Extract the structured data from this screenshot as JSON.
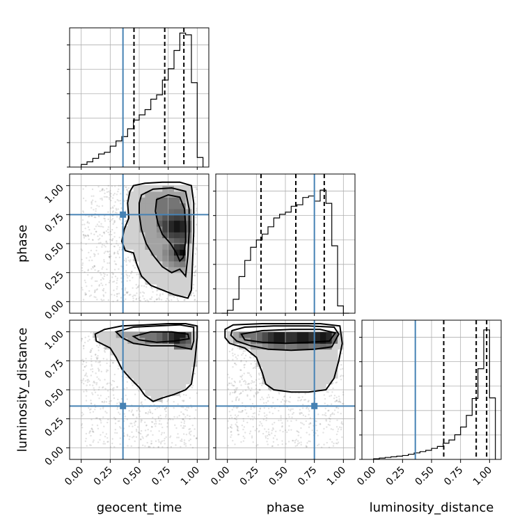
{
  "chart_data": {
    "type": "corner",
    "parameters": [
      "geocent_time",
      "phase",
      "luminosity_distance"
    ],
    "axis_range": [
      -0.1,
      1.1
    ],
    "ticks": [
      0.0,
      0.25,
      0.5,
      0.75,
      1.0
    ],
    "tick_labels": [
      "0.00",
      "0.25",
      "0.50",
      "0.75",
      "1.00"
    ],
    "truths": {
      "geocent_time": 0.36,
      "phase": 0.75,
      "luminosity_distance": 0.36
    },
    "colors": {
      "truth": "#4682b4",
      "line": "#000000",
      "grid": "#b0b0b0"
    },
    "histograms": [
      {
        "param": "geocent_time",
        "bin_edges": [
          0.0,
          0.05,
          0.1,
          0.15,
          0.2,
          0.25,
          0.3,
          0.35,
          0.4,
          0.45,
          0.5,
          0.55,
          0.6,
          0.65,
          0.7,
          0.75,
          0.8,
          0.85,
          0.9,
          0.95,
          1.0,
          1.05
        ],
        "counts": [
          3,
          6,
          10,
          15,
          17,
          24,
          30,
          35,
          44,
          54,
          60,
          66,
          78,
          83,
          100,
          113,
          134,
          154,
          152,
          97,
          11
        ],
        "ymax": 160,
        "quantiles": [
          0.455,
          0.72,
          0.885
        ]
      },
      {
        "param": "phase",
        "bin_edges": [
          -0.05,
          0.0,
          0.05,
          0.1,
          0.15,
          0.2,
          0.25,
          0.3,
          0.35,
          0.4,
          0.45,
          0.5,
          0.55,
          0.6,
          0.65,
          0.7,
          0.75,
          0.8,
          0.85,
          0.9,
          0.95,
          1.0,
          1.05
        ],
        "counts": [
          0,
          4,
          19,
          50,
          72,
          90,
          100,
          108,
          118,
          130,
          135,
          138,
          146,
          148,
          158,
          160,
          153,
          168,
          150,
          92,
          10,
          0
        ],
        "ymax": 190,
        "quantiles": [
          0.29,
          0.59,
          0.835
        ]
      },
      {
        "param": "luminosity_distance",
        "bin_edges": [
          0.0,
          0.05,
          0.1,
          0.15,
          0.2,
          0.25,
          0.3,
          0.35,
          0.4,
          0.45,
          0.5,
          0.55,
          0.6,
          0.65,
          0.7,
          0.75,
          0.8,
          0.85,
          0.9,
          0.95,
          1.0,
          1.05
        ],
        "counts": [
          1,
          2,
          3,
          4,
          5,
          6,
          8,
          10,
          12,
          14,
          17,
          20,
          25,
          30,
          38,
          50,
          68,
          94,
          140,
          200,
          95
        ],
        "ymax": 215,
        "quantiles": [
          0.605,
          0.885,
          0.975
        ]
      }
    ],
    "densities": [
      {
        "x": "geocent_time",
        "y": "phase",
        "modes": [
          [
            0.83,
            0.65
          ],
          [
            0.88,
            0.42
          ]
        ],
        "contours": [
          [
            [
              0.45,
              1.0
            ],
            [
              0.55,
              1.02
            ],
            [
              0.7,
              1.03
            ],
            [
              0.85,
              1.03
            ],
            [
              0.95,
              1.0
            ],
            [
              0.97,
              0.85
            ],
            [
              0.97,
              0.6
            ],
            [
              0.96,
              0.35
            ],
            [
              0.95,
              0.1
            ],
            [
              0.92,
              0.03
            ],
            [
              0.8,
              0.06
            ],
            [
              0.7,
              0.1
            ],
            [
              0.6,
              0.14
            ],
            [
              0.52,
              0.22
            ],
            [
              0.48,
              0.32
            ],
            [
              0.45,
              0.42
            ],
            [
              0.38,
              0.44
            ],
            [
              0.35,
              0.52
            ],
            [
              0.37,
              0.62
            ],
            [
              0.41,
              0.72
            ],
            [
              0.4,
              0.85
            ],
            [
              0.42,
              0.95
            ]
          ],
          [
            [
              0.52,
              0.92
            ],
            [
              0.62,
              0.97
            ],
            [
              0.78,
              0.98
            ],
            [
              0.9,
              0.95
            ],
            [
              0.93,
              0.8
            ],
            [
              0.93,
              0.6
            ],
            [
              0.92,
              0.4
            ],
            [
              0.9,
              0.22
            ],
            [
              0.85,
              0.28
            ],
            [
              0.78,
              0.25
            ],
            [
              0.7,
              0.3
            ],
            [
              0.62,
              0.4
            ],
            [
              0.56,
              0.5
            ],
            [
              0.52,
              0.62
            ],
            [
              0.5,
              0.75
            ],
            [
              0.5,
              0.85
            ]
          ],
          [
            [
              0.65,
              0.88
            ],
            [
              0.75,
              0.92
            ],
            [
              0.85,
              0.9
            ],
            [
              0.89,
              0.8
            ],
            [
              0.9,
              0.65
            ],
            [
              0.9,
              0.52
            ],
            [
              0.88,
              0.38
            ],
            [
              0.85,
              0.35
            ],
            [
              0.82,
              0.42
            ],
            [
              0.77,
              0.5
            ],
            [
              0.7,
              0.58
            ],
            [
              0.66,
              0.68
            ],
            [
              0.64,
              0.78
            ]
          ]
        ]
      },
      {
        "x": "geocent_time",
        "y": "luminosity_distance",
        "modes": [
          [
            0.85,
            0.95
          ]
        ],
        "contours": [
          [
            [
              0.12,
              0.98
            ],
            [
              0.2,
              1.02
            ],
            [
              0.35,
              1.05
            ],
            [
              0.55,
              1.06
            ],
            [
              0.75,
              1.07
            ],
            [
              0.9,
              1.07
            ],
            [
              1.0,
              1.05
            ],
            [
              1.0,
              0.95
            ],
            [
              0.98,
              0.75
            ],
            [
              0.95,
              0.55
            ],
            [
              0.9,
              0.5
            ],
            [
              0.8,
              0.46
            ],
            [
              0.7,
              0.43
            ],
            [
              0.62,
              0.4
            ],
            [
              0.55,
              0.45
            ],
            [
              0.5,
              0.52
            ],
            [
              0.42,
              0.6
            ],
            [
              0.35,
              0.68
            ],
            [
              0.3,
              0.78
            ],
            [
              0.25,
              0.86
            ],
            [
              0.13,
              0.92
            ]
          ],
          [
            [
              0.3,
              1.0
            ],
            [
              0.45,
              1.04
            ],
            [
              0.65,
              1.05
            ],
            [
              0.85,
              1.06
            ],
            [
              0.97,
              1.04
            ],
            [
              0.97,
              0.92
            ],
            [
              0.95,
              0.85
            ],
            [
              0.8,
              0.88
            ],
            [
              0.6,
              0.88
            ],
            [
              0.45,
              0.9
            ],
            [
              0.35,
              0.95
            ]
          ],
          [
            [
              0.45,
              0.96
            ],
            [
              0.6,
              1.0
            ],
            [
              0.78,
              1.0
            ],
            [
              0.92,
              0.98
            ],
            [
              0.93,
              0.94
            ],
            [
              0.8,
              0.92
            ],
            [
              0.65,
              0.91
            ],
            [
              0.5,
              0.93
            ]
          ]
        ]
      },
      {
        "x": "phase",
        "y": "luminosity_distance",
        "modes": [
          [
            0.45,
            0.95
          ],
          [
            0.65,
            0.95
          ],
          [
            0.82,
            0.95
          ]
        ],
        "contours": [
          [
            [
              -0.02,
              1.02
            ],
            [
              0.05,
              1.06
            ],
            [
              0.3,
              1.07
            ],
            [
              0.55,
              1.07
            ],
            [
              0.8,
              1.07
            ],
            [
              0.97,
              1.05
            ],
            [
              0.99,
              0.9
            ],
            [
              0.96,
              0.75
            ],
            [
              0.92,
              0.6
            ],
            [
              0.85,
              0.5
            ],
            [
              0.7,
              0.48
            ],
            [
              0.55,
              0.48
            ],
            [
              0.4,
              0.5
            ],
            [
              0.33,
              0.55
            ],
            [
              0.3,
              0.65
            ],
            [
              0.25,
              0.78
            ],
            [
              0.15,
              0.86
            ],
            [
              0.02,
              0.9
            ],
            [
              -0.02,
              0.95
            ]
          ],
          [
            [
              0.04,
              1.01
            ],
            [
              0.15,
              1.04
            ],
            [
              0.4,
              1.05
            ],
            [
              0.7,
              1.05
            ],
            [
              0.92,
              1.04
            ],
            [
              0.96,
              0.98
            ],
            [
              0.9,
              0.87
            ],
            [
              0.75,
              0.85
            ],
            [
              0.55,
              0.84
            ],
            [
              0.35,
              0.85
            ],
            [
              0.2,
              0.88
            ],
            [
              0.08,
              0.92
            ],
            [
              0.03,
              0.97
            ]
          ],
          [
            [
              0.12,
              0.98
            ],
            [
              0.3,
              1.01
            ],
            [
              0.55,
              1.02
            ],
            [
              0.8,
              1.02
            ],
            [
              0.93,
              0.99
            ],
            [
              0.88,
              0.92
            ],
            [
              0.7,
              0.91
            ],
            [
              0.5,
              0.9
            ],
            [
              0.3,
              0.91
            ],
            [
              0.15,
              0.93
            ]
          ]
        ]
      }
    ]
  }
}
